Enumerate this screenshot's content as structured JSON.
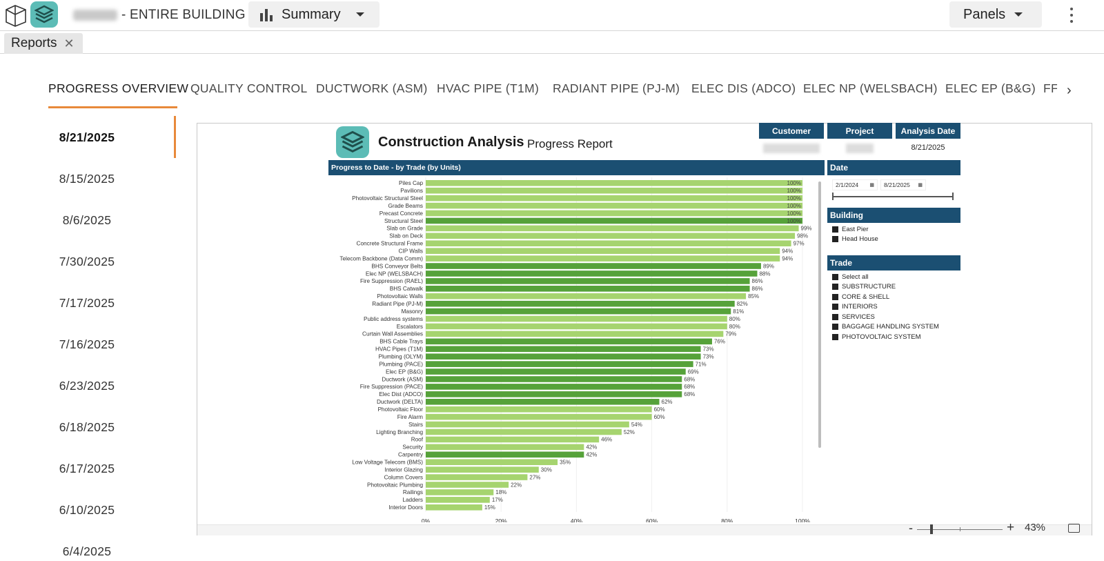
{
  "topbar": {
    "title_suffix": "- ENTIRE BUILDING",
    "summary_label": "Summary",
    "panels_label": "Panels"
  },
  "doc_tab": {
    "label": "Reports",
    "close": "✕"
  },
  "nav_tabs": [
    "PROGRESS OVERVIEW",
    "QUALITY CONTROL",
    "DUCTWORK (ASM)",
    "HVAC PIPE (T1M)",
    "RADIANT PIPE (PJ-M)",
    "ELEC DIS (ADCO)",
    "ELEC NP (WELSBACH)",
    "ELEC EP (B&G)",
    "FF"
  ],
  "dates": [
    "8/21/2025",
    "8/15/2025",
    "8/6/2025",
    "7/30/2025",
    "7/17/2025",
    "7/16/2025",
    "6/23/2025",
    "6/18/2025",
    "6/17/2025",
    "6/10/2025",
    "6/4/2025"
  ],
  "report": {
    "title": "Construction Analysis",
    "subtitle": "Progress Report",
    "customer_label": "Customer",
    "project_label": "Project",
    "analysis_date_label": "Analysis Date",
    "analysis_date_value": "8/21/2025",
    "progress_header": "Progress to Date - by Trade (by Units)",
    "date_header": "Date",
    "date_from": "2/1/2024",
    "date_to": "8/21/2025",
    "building_header": "Building",
    "buildings": [
      "East Pier",
      "Head House"
    ],
    "trade_header": "Trade",
    "trades": [
      "Select all",
      "SUBSTRUCTURE",
      "CORE & SHELL",
      "INTERIORS",
      "SERVICES",
      "BAGGAGE HANDLING SYSTEM",
      "PHOTOVOLTAIC SYSTEM"
    ]
  },
  "zoom": {
    "minus": "-",
    "plus": "+",
    "percent": "43%"
  },
  "colors": {
    "light_green": "#a6d46f",
    "dark_green": "#56a23a",
    "navy": "#1b4f72",
    "accent": "#e8893a",
    "teal": "#5cbcb6"
  },
  "chart_data": {
    "type": "bar",
    "orientation": "horizontal",
    "title": "Progress to Date - by Trade (by Units)",
    "xlim": [
      0,
      100
    ],
    "xticks": [
      "0%",
      "20%",
      "40%",
      "60%",
      "80%",
      "100%"
    ],
    "categories": [
      "Piles Cap",
      "Pavilions",
      "Photovoltaic Structural Steel",
      "Grade Beams",
      "Precast Concrete",
      "Structural Steel",
      "Slab on Grade",
      "Slab on Deck",
      "Concrete Structural Frame",
      "CIP Walls",
      "Telecom Backbone (Data Comm)",
      "BHS Conveyor Belts",
      "Elec NP (WELSBACH)",
      "Fire Suppression (RAEL)",
      "BHS Catwalk",
      "Photovoltaic Walls",
      "Radiant Pipe (PJ-M)",
      "Masonry",
      "Public address systems",
      "Escalators",
      "Curtain Wall Assemblies",
      "BHS Cable Trays",
      "HVAC Pipes (T1M)",
      "Plumbing (OLYM)",
      "Plumbing (PACE)",
      "Elec EP (B&G)",
      "Ductwork (ASM)",
      "Fire Suppression (PACE)",
      "Elec Dist (ADCO)",
      "Ductwork (DELTA)",
      "Photovoltaic Floor",
      "Fire Alarm",
      "Stairs",
      "Lighting Branching",
      "Roof",
      "Security",
      "Carpentry",
      "Low Voltage Telecom (BMS)",
      "Interior Glazing",
      "Column Covers",
      "Photovoltaic Plumbing",
      "Railings",
      "Ladders",
      "Interior Doors"
    ],
    "values": [
      100,
      100,
      100,
      100,
      100,
      100,
      99,
      98,
      97,
      94,
      94,
      89,
      88,
      86,
      86,
      85,
      82,
      81,
      80,
      80,
      79,
      76,
      73,
      73,
      71,
      69,
      68,
      68,
      68,
      62,
      60,
      60,
      54,
      52,
      46,
      42,
      42,
      35,
      30,
      27,
      22,
      18,
      17,
      15
    ],
    "labels": [
      "100%",
      "100%",
      "100%",
      "100%",
      "100%",
      "100%",
      "99%",
      "98%",
      "97%",
      "94%",
      "94%",
      "89%",
      "88%",
      "86%",
      "86%",
      "85%",
      "82%",
      "81%",
      "80%",
      "80%",
      "79%",
      "76%",
      "73%",
      "73%",
      "71%",
      "69%",
      "68%",
      "68%",
      "68%",
      "62%",
      "60%",
      "60%",
      "54%",
      "52%",
      "46%",
      "42%",
      "42%",
      "35%",
      "30%",
      "27%",
      "22%",
      "18%",
      "17%",
      "15%"
    ],
    "shade": [
      "light",
      "light",
      "light",
      "light",
      "light",
      "dark",
      "light",
      "light",
      "light",
      "light",
      "light",
      "dark",
      "dark",
      "dark",
      "dark",
      "light",
      "dark",
      "dark",
      "light",
      "light",
      "light",
      "dark",
      "dark",
      "dark",
      "dark",
      "dark",
      "dark",
      "dark",
      "dark",
      "dark",
      "light",
      "light",
      "light",
      "light",
      "light",
      "light",
      "dark",
      "light",
      "light",
      "light",
      "light",
      "light",
      "light",
      "light"
    ]
  }
}
